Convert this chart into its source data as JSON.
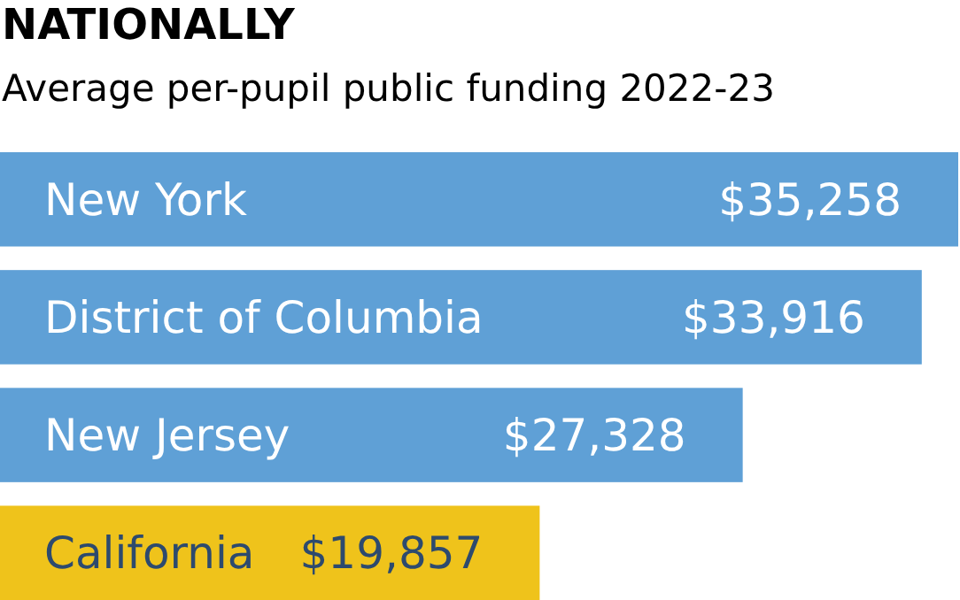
{
  "chart_data": {
    "type": "bar",
    "orientation": "horizontal",
    "title": "NATIONALLY",
    "subtitle": "Average per-pupil public funding 2022-23",
    "categories": [
      "New York",
      "District of Columbia",
      "New Jersey",
      "California"
    ],
    "values": [
      35258,
      33916,
      27328,
      19857
    ],
    "value_labels": [
      "$35,258",
      "$33,916",
      "$27,328",
      "$19,857"
    ],
    "colors": [
      "#5fa0d6",
      "#5fa0d6",
      "#5fa0d6",
      "#efc31b"
    ],
    "relative": false
  }
}
